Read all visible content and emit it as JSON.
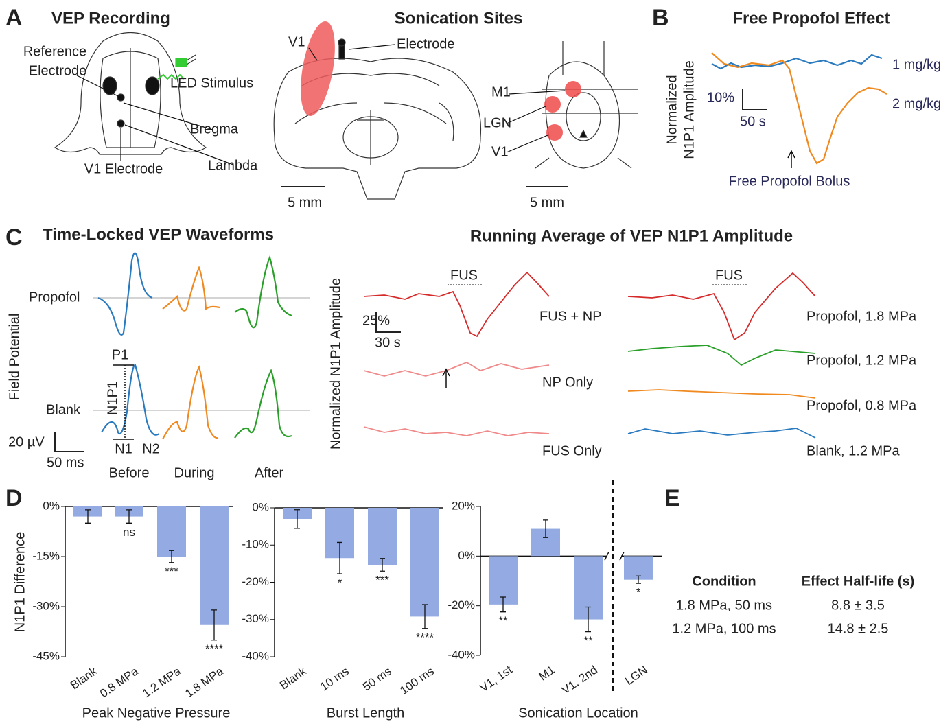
{
  "panel_a": {
    "label": "A",
    "title": "VEP Recording",
    "reference_lines": [
      "Reference",
      "Electrode"
    ],
    "led": "LED Stimulus",
    "bregma": "Bregma",
    "lambda": "Lambda",
    "v1_electrode": "V1 Electrode",
    "sites_title": "Sonication Sites",
    "coronal_v1": "V1",
    "electrode": "Electrode",
    "scale_1": "5 mm",
    "m1": "M1",
    "lgn": "LGN",
    "v1": "V1",
    "scale_2": "5 mm"
  },
  "panel_b": {
    "label": "B",
    "title": "Free Propofol Effect",
    "ylabel_lines": [
      "Normalized",
      "N1P1 Amplitude"
    ],
    "scale_y": "10%",
    "scale_x": "50 s",
    "dose_1": "1 mg/kg",
    "dose_2": "2 mg/kg",
    "bolus": "Free Propofol Bolus"
  },
  "panel_c": {
    "label": "C",
    "title": "Time-Locked VEP Waveforms",
    "propofol": "Propofol",
    "blank": "Blank",
    "ylabel": "Field Potential",
    "scale_y": "20 µV",
    "scale_x": "50 ms",
    "phases": [
      "Before",
      "During",
      "After"
    ],
    "p1": "P1",
    "n1": "N1",
    "n2": "N2",
    "n1p1": "N1P1",
    "running_title": "Running Average of VEP N1P1 Amplitude",
    "running_ylabel": "Normalized N1P1 Amplitude",
    "fus": "FUS",
    "fus_right": "FUS",
    "run_scale_y": "25%",
    "run_scale_x": "30 s",
    "left_traces": [
      "FUS + NP",
      "NP Only",
      "FUS Only"
    ],
    "right_traces": [
      "Propofol, 1.8 MPa",
      "Propofol, 1.2 MPa",
      "Propofol, 0.8 MPa",
      "Blank, 1.2 MPa"
    ]
  },
  "panel_d": {
    "label": "D"
  },
  "chart_data": [
    {
      "type": "bar",
      "ylabel": "N1P1 Difference",
      "xlabel": "Peak Negative Pressure",
      "color": "#93abe2",
      "categories": [
        "Blank",
        "0.8 MPa",
        "1.2 MPa",
        "1.8 MPa"
      ],
      "values": [
        -3,
        -3,
        -15,
        -35.5
      ],
      "errors": [
        2,
        2,
        1.8,
        4.5
      ],
      "significance": [
        null,
        "ns",
        "***",
        "****"
      ],
      "ylim": [
        -45,
        0
      ],
      "yticks": [
        {
          "value": 0,
          "label": "0%"
        },
        {
          "value": -15,
          "label": "-15%"
        },
        {
          "value": -30,
          "label": "-30%"
        },
        {
          "value": -45,
          "label": "-45%"
        }
      ]
    },
    {
      "type": "bar",
      "xlabel": "Burst Length",
      "color": "#93abe2",
      "categories": [
        "Blank",
        "10 ms",
        "50 ms",
        "100 ms"
      ],
      "values": [
        -3,
        -13.5,
        -15.3,
        -29.2
      ],
      "errors": [
        2.5,
        4.2,
        1.7,
        3.2
      ],
      "significance": [
        null,
        "*",
        "***",
        "****"
      ],
      "ylim": [
        -40,
        0
      ],
      "yticks": [
        {
          "value": 0,
          "label": "0%"
        },
        {
          "value": -10,
          "label": "-10%"
        },
        {
          "value": -20,
          "label": "-20%"
        },
        {
          "value": -30,
          "label": "-30%"
        },
        {
          "value": -40,
          "label": "-40%"
        }
      ]
    },
    {
      "type": "bar",
      "xlabel": "Sonication Location",
      "color": "#93abe2",
      "categories": [
        "V1, 1st",
        "M1",
        "V1, 2nd",
        "LGN"
      ],
      "values": [
        -19.5,
        11,
        -25.5,
        -9.5
      ],
      "errors": [
        3,
        3.5,
        5,
        1.5
      ],
      "significance": [
        "**",
        null,
        "**",
        "*"
      ],
      "ylim": [
        -40,
        20
      ],
      "yticks": [
        {
          "value": 20,
          "label": "20%"
        },
        {
          "value": 0,
          "label": "0%"
        },
        {
          "value": -20,
          "label": "-20%"
        },
        {
          "value": -40,
          "label": "-40%"
        }
      ]
    }
  ],
  "panel_e": {
    "label": "E",
    "table": {
      "header": [
        "Condition",
        "Effect Half-life (s)"
      ],
      "rows": [
        [
          "1.8 MPa, 50 ms",
          "8.8 ± 3.5"
        ],
        [
          "1.2 MPa, 100 ms",
          "14.8 ± 2.5"
        ]
      ]
    }
  }
}
